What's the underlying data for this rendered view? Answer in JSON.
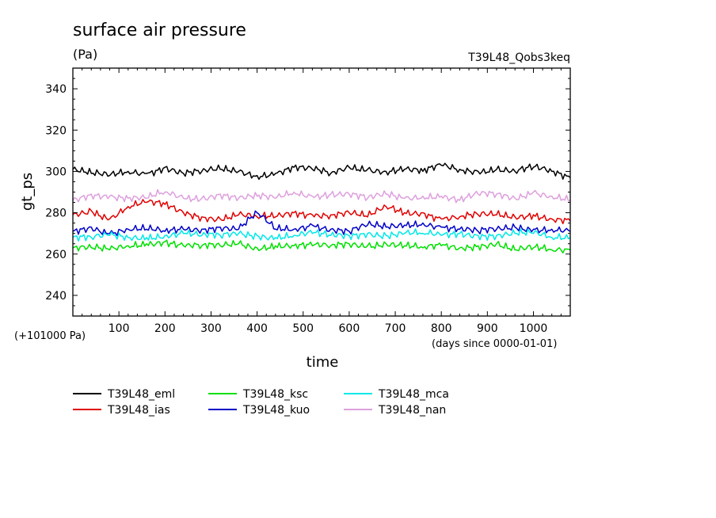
{
  "chart_data": {
    "type": "line",
    "title": "surface air pressure",
    "units": "(Pa)",
    "experiment": "T39L48_Qobs3keq",
    "ylabel": "gt_ps",
    "xlabel": "time",
    "y_offset_note": "(+101000 Pa)",
    "x_unit_note": "(days since 0000-01-01)",
    "xlim": [
      0,
      1080
    ],
    "ylim": [
      230,
      350
    ],
    "xticks": [
      100,
      200,
      300,
      400,
      500,
      600,
      700,
      800,
      900,
      1000
    ],
    "yticks": [
      240,
      260,
      280,
      300,
      320,
      340
    ],
    "sample_days": [
      0,
      40,
      80,
      120,
      160,
      200,
      240,
      280,
      320,
      360,
      400,
      440,
      480,
      520,
      560,
      600,
      640,
      680,
      720,
      760,
      800,
      840,
      880,
      920,
      960,
      1000,
      1040,
      1080
    ],
    "series": [
      {
        "name": "T39L48_eml",
        "color": "#000000",
        "values": [
          301,
          299,
          298,
          300,
          299,
          302,
          299,
          300,
          301,
          300,
          298,
          299,
          302,
          301,
          299,
          302,
          301,
          300,
          301,
          300,
          303,
          301,
          300,
          301,
          300,
          302,
          300,
          297
        ]
      },
      {
        "name": "T39L48_ias",
        "color": "#e00000",
        "values": [
          279,
          281,
          277,
          283,
          285,
          284,
          280,
          278,
          277,
          279,
          278,
          278,
          280,
          279,
          279,
          280,
          278,
          283,
          280,
          280,
          277,
          278,
          279,
          279,
          278,
          279,
          277,
          276
        ]
      },
      {
        "name": "T39L48_ksc",
        "color": "#00e000",
        "values": [
          263,
          263,
          262,
          264,
          265,
          266,
          264,
          264,
          264,
          265,
          263,
          264,
          264,
          264,
          264,
          265,
          264,
          265,
          264,
          263,
          264,
          263,
          264,
          265,
          262,
          263,
          262,
          262
        ]
      },
      {
        "name": "T39L48_kuo",
        "color": "#0000c8",
        "values": [
          271,
          273,
          270,
          272,
          272,
          271,
          272,
          272,
          273,
          272,
          280,
          272,
          272,
          274,
          272,
          271,
          274,
          273,
          274,
          275,
          273,
          272,
          271,
          272,
          273,
          272,
          272,
          271
        ]
      },
      {
        "name": "T39L48_mca",
        "color": "#00e8e8",
        "values": [
          268,
          268,
          269,
          268,
          268,
          269,
          270,
          269,
          269,
          270,
          269,
          268,
          269,
          270,
          269,
          269,
          270,
          269,
          270,
          270,
          269,
          270,
          269,
          269,
          270,
          270,
          268,
          268
        ]
      },
      {
        "name": "T39L48_nan",
        "color": "#dda0dd",
        "values": [
          286,
          289,
          288,
          287,
          287,
          290,
          287,
          287,
          289,
          287,
          288,
          287,
          290,
          288,
          289,
          289,
          287,
          289,
          287,
          288,
          288,
          286,
          289,
          289,
          287,
          290,
          288,
          286
        ]
      }
    ]
  }
}
